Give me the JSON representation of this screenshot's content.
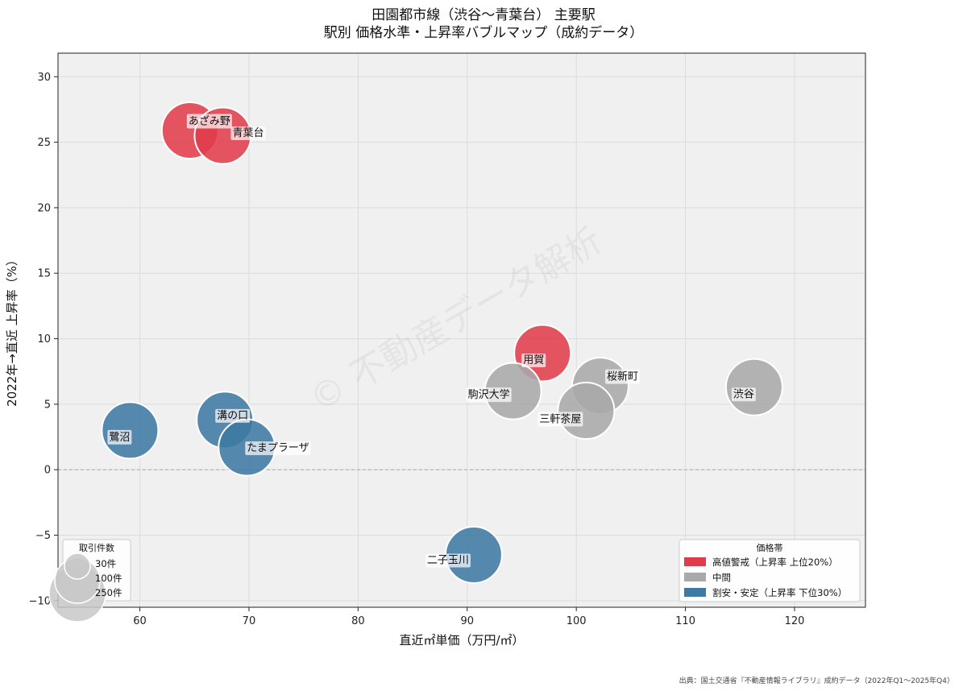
{
  "chart_data": {
    "type": "scatter",
    "title_line1": "田園都市線（渋谷〜青葉台） 主要駅",
    "title_line2": "駅別 価格水準・上昇率バブルマップ（成約データ）",
    "xlabel": "直近㎡単価（万円/㎡）",
    "ylabel": "2022年→直近 上昇率（%）",
    "xlim": [
      52.5,
      126.5
    ],
    "ylim": [
      -10.5,
      31.8
    ],
    "x_ticks": [
      60,
      70,
      80,
      90,
      100,
      110,
      120
    ],
    "y_ticks": [
      -10,
      -5,
      0,
      5,
      10,
      15,
      20,
      25,
      30
    ],
    "y_tick_labels": [
      "−10",
      "−5",
      "0",
      "5",
      "10",
      "15",
      "20",
      "25",
      "30"
    ],
    "grid": true,
    "zero_line": true,
    "colors": {
      "high": "#e03c4b",
      "mid": "#a9a9a9",
      "low": "#3e79a3"
    },
    "points": [
      {
        "name": "あざみ野",
        "x": 64.6,
        "y": 25.9,
        "band": "high",
        "label_dx": -2,
        "label_dy": -12
      },
      {
        "name": "青葉台",
        "x": 67.6,
        "y": 25.5,
        "band": "high",
        "label_dx": 12,
        "label_dy": -4
      },
      {
        "name": "用賀",
        "x": 96.9,
        "y": 8.9,
        "band": "high",
        "label_dx": -24,
        "label_dy": 8
      },
      {
        "name": "桜新町",
        "x": 102.2,
        "y": 6.4,
        "band": "mid",
        "label_dx": 8,
        "label_dy": -12
      },
      {
        "name": "渋谷",
        "x": 116.3,
        "y": 6.3,
        "band": "mid",
        "label_dx": -26,
        "label_dy": 8
      },
      {
        "name": "駒沢大学",
        "x": 94.2,
        "y": 6.0,
        "band": "mid",
        "label_dx": -56,
        "label_dy": 4
      },
      {
        "name": "三軒茶屋",
        "x": 100.9,
        "y": 4.5,
        "band": "mid",
        "label_dx": -58,
        "label_dy": 10
      },
      {
        "name": "溝の口",
        "x": 67.8,
        "y": 3.8,
        "band": "low",
        "label_dx": -10,
        "label_dy": -6
      },
      {
        "name": "鷺沼",
        "x": 59.1,
        "y": 3.0,
        "band": "low",
        "label_dx": -26,
        "label_dy": 8
      },
      {
        "name": "たまプラーザ",
        "x": 69.8,
        "y": 1.7,
        "band": "low",
        "label_dx": 0,
        "label_dy": 0
      },
      {
        "name": "二子玉川",
        "x": 90.6,
        "y": -6.5,
        "band": "low",
        "label_dx": -58,
        "label_dy": 6
      }
    ],
    "size_legend": {
      "title": "取引件数",
      "entries": [
        "30件",
        "100件",
        "250件"
      ]
    },
    "color_legend": {
      "title": "価格帯",
      "placement": "lower-right",
      "entries": [
        {
          "band": "high",
          "label": "高値警戒（上昇率 上位20%）"
        },
        {
          "band": "mid",
          "label": "中間"
        },
        {
          "band": "low",
          "label": "割安・安定（上昇率 下位30%）"
        }
      ]
    },
    "watermark": "© 不動産データ解析",
    "source": "出典：国土交通省『不動産情報ライブラリ』成約データ（2022年Q1〜2025年Q4）"
  }
}
